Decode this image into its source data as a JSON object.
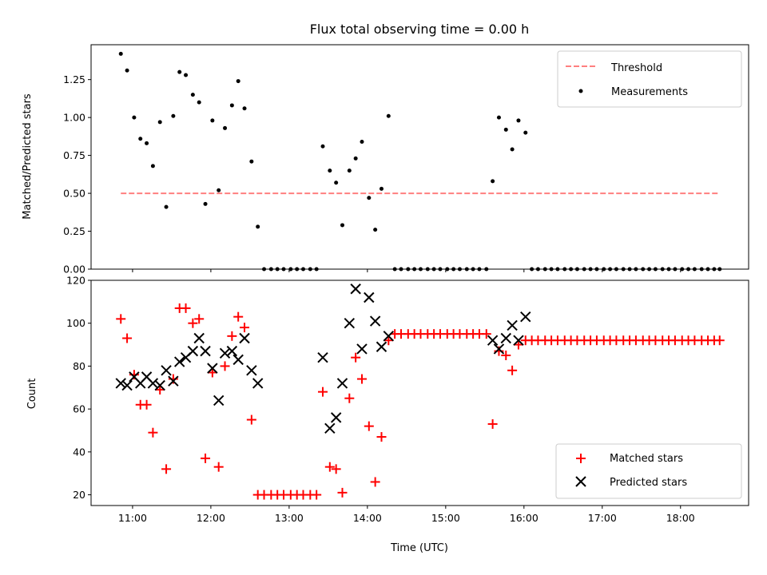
{
  "chart_data": [
    {
      "type": "scatter",
      "title": "Flux total observing time = 0.00 h",
      "xlabel": "",
      "ylabel": "Matched/Predicted stars",
      "xlim": [
        10.47,
        18.87
      ],
      "ylim": [
        0,
        1.48
      ],
      "yticks": [
        0,
        0.25,
        0.5,
        0.75,
        1.0,
        1.25
      ],
      "ytick_labels": [
        "0.00",
        "0.25",
        "0.50",
        "0.75",
        "1.00",
        "1.25"
      ],
      "legend_position": "top-right",
      "threshold": {
        "name": "Threshold",
        "value": 0.5,
        "x_range": [
          10.85,
          18.5
        ],
        "color": "#ff7f7f",
        "style": "dashed"
      },
      "series": [
        {
          "name": "Measurements",
          "color": "#000000",
          "marker": "dot",
          "x": [
            10.85,
            10.93,
            11.02,
            11.1,
            11.18,
            11.26,
            11.35,
            11.43,
            11.52,
            11.6,
            11.68,
            11.77,
            11.85,
            11.93,
            12.02,
            12.1,
            12.18,
            12.27,
            12.35,
            12.43,
            12.52,
            12.6,
            12.68,
            12.77,
            12.85,
            12.93,
            13.02,
            13.1,
            13.18,
            13.27,
            13.35,
            13.43,
            13.52,
            13.6,
            13.68,
            13.77,
            13.85,
            13.93,
            14.02,
            14.1,
            14.18,
            14.27,
            14.35,
            14.43,
            14.52,
            14.6,
            14.68,
            14.77,
            14.85,
            14.93,
            15.02,
            15.1,
            15.18,
            15.27,
            15.35,
            15.43,
            15.52,
            15.6,
            15.68,
            15.77,
            15.85,
            15.93,
            16.02,
            16.1,
            16.18,
            16.27,
            16.35,
            16.43,
            16.52,
            16.6,
            16.68,
            16.77,
            16.85,
            16.93,
            17.02,
            17.1,
            17.18,
            17.27,
            17.35,
            17.43,
            17.52,
            17.6,
            17.68,
            17.77,
            17.85,
            17.93,
            18.02,
            18.1,
            18.18,
            18.27,
            18.35,
            18.43,
            18.5
          ],
          "y": [
            1.42,
            1.31,
            1.0,
            0.86,
            0.83,
            0.68,
            0.97,
            0.41,
            1.01,
            1.3,
            1.28,
            1.15,
            1.1,
            0.43,
            0.98,
            0.52,
            0.93,
            1.08,
            1.24,
            1.06,
            0.71,
            0.28,
            0,
            0,
            0,
            0,
            0,
            0,
            0,
            0,
            0,
            0.81,
            0.65,
            0.57,
            0.29,
            0.65,
            0.73,
            0.84,
            0.47,
            0.26,
            0.53,
            1.01,
            0,
            0,
            0,
            0,
            0,
            0,
            0,
            0,
            0,
            0,
            0,
            0,
            0,
            0,
            0,
            0.58,
            1.0,
            0.92,
            0.79,
            0.98,
            0.9,
            0,
            0,
            0,
            0,
            0,
            0,
            0,
            0,
            0,
            0,
            0,
            0,
            0,
            0,
            0,
            0,
            0,
            0,
            0,
            0,
            0,
            0,
            0,
            0,
            0,
            0,
            0,
            0,
            0,
            0
          ]
        }
      ]
    },
    {
      "type": "scatter",
      "title": "",
      "xlabel": "Time (UTC)",
      "ylabel": "Count",
      "xlim": [
        10.47,
        18.87
      ],
      "ylim": [
        15,
        120
      ],
      "yticks": [
        20,
        40,
        60,
        80,
        100,
        120
      ],
      "ytick_labels": [
        "20",
        "40",
        "60",
        "80",
        "100",
        "120"
      ],
      "xticks": [
        11,
        12,
        13,
        14,
        15,
        16,
        17,
        18
      ],
      "xtick_labels": [
        "11:00",
        "12:00",
        "13:00",
        "14:00",
        "15:00",
        "16:00",
        "17:00",
        "18:00"
      ],
      "legend_position": "bottom-right",
      "series": [
        {
          "name": "Matched stars",
          "color": "#ff0000",
          "marker": "plus",
          "x": [
            10.85,
            10.93,
            11.02,
            11.1,
            11.18,
            11.26,
            11.35,
            11.43,
            11.52,
            11.6,
            11.68,
            11.77,
            11.85,
            11.93,
            12.02,
            12.1,
            12.18,
            12.27,
            12.35,
            12.43,
            12.52,
            12.6,
            12.68,
            12.77,
            12.85,
            12.93,
            13.02,
            13.1,
            13.18,
            13.27,
            13.35,
            13.43,
            13.52,
            13.6,
            13.68,
            13.77,
            13.85,
            13.93,
            14.02,
            14.1,
            14.18,
            14.27,
            14.35,
            14.43,
            14.52,
            14.6,
            14.68,
            14.77,
            14.85,
            14.93,
            15.02,
            15.1,
            15.18,
            15.27,
            15.35,
            15.43,
            15.52,
            15.6,
            15.68,
            15.77,
            15.85,
            15.93,
            16.02,
            16.1,
            16.18,
            16.27,
            16.35,
            16.43,
            16.52,
            16.6,
            16.68,
            16.77,
            16.85,
            16.93,
            17.02,
            17.1,
            17.18,
            17.27,
            17.35,
            17.43,
            17.52,
            17.6,
            17.68,
            17.77,
            17.85,
            17.93,
            18.02,
            18.1,
            18.18,
            18.27,
            18.35,
            18.43,
            18.5
          ],
          "y": [
            102,
            93,
            76,
            62,
            62,
            49,
            69,
            32,
            74,
            107,
            107,
            100,
            102,
            37,
            77,
            33,
            80,
            94,
            103,
            98,
            55,
            20,
            20,
            20,
            20,
            20,
            20,
            20,
            20,
            20,
            20,
            68,
            33,
            32,
            21,
            65,
            84,
            74,
            52,
            26,
            47,
            92,
            95,
            95,
            95,
            95,
            95,
            95,
            95,
            95,
            95,
            95,
            95,
            95,
            95,
            95,
            95,
            53,
            87,
            85,
            78,
            90,
            92,
            92,
            92,
            92,
            92,
            92,
            92,
            92,
            92,
            92,
            92,
            92,
            92,
            92,
            92,
            92,
            92,
            92,
            92,
            92,
            92,
            92,
            92,
            92,
            92,
            92,
            92,
            92,
            92,
            92,
            92
          ]
        },
        {
          "name": "Predicted stars",
          "color": "#000000",
          "marker": "x",
          "x": [
            10.85,
            10.93,
            11.02,
            11.1,
            11.18,
            11.26,
            11.35,
            11.43,
            11.52,
            11.6,
            11.68,
            11.77,
            11.85,
            11.93,
            12.02,
            12.1,
            12.18,
            12.27,
            12.35,
            12.43,
            12.52,
            12.6,
            13.43,
            13.52,
            13.6,
            13.68,
            13.77,
            13.85,
            13.93,
            14.02,
            14.1,
            14.18,
            14.27,
            15.6,
            15.68,
            15.77,
            15.85,
            15.93,
            16.02
          ],
          "y": [
            72,
            71,
            75,
            72,
            75,
            72,
            71,
            78,
            73,
            82,
            84,
            87,
            93,
            87,
            79,
            64,
            86,
            87,
            83,
            93,
            78,
            72,
            84,
            51,
            56,
            72,
            100,
            116,
            88,
            112,
            101,
            89,
            94,
            92,
            88,
            93,
            99,
            92,
            103
          ]
        }
      ]
    }
  ]
}
